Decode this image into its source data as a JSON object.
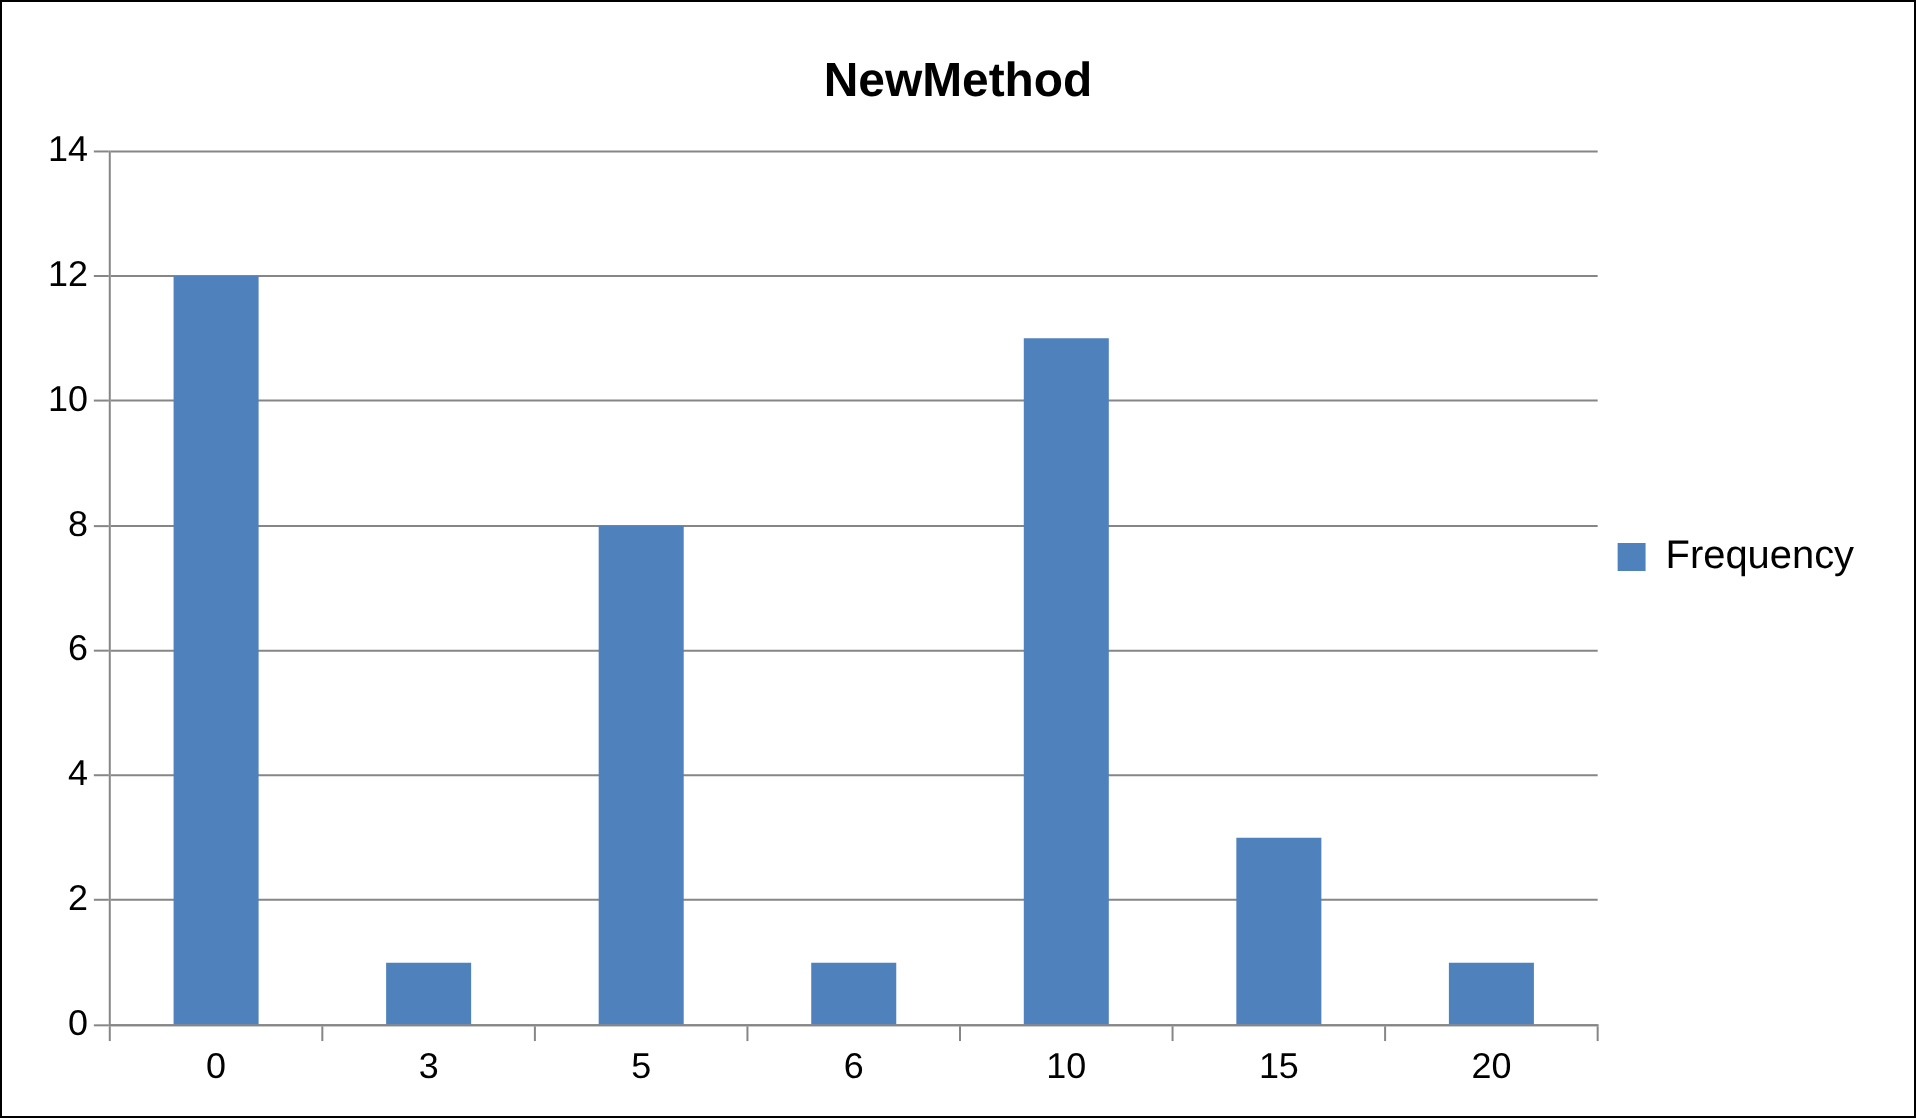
{
  "chart_data": {
    "type": "bar",
    "title": "NewMethod",
    "categories": [
      "0",
      "3",
      "5",
      "6",
      "10",
      "15",
      "20"
    ],
    "series": [
      {
        "name": "Frequency",
        "color": "#4f81bd",
        "values": [
          12,
          1,
          8,
          1,
          11,
          3,
          1
        ]
      }
    ],
    "ylim": [
      0,
      14
    ],
    "yticks": [
      0,
      2,
      4,
      6,
      8,
      10,
      12,
      14
    ],
    "grid": "y",
    "legend": "right"
  }
}
